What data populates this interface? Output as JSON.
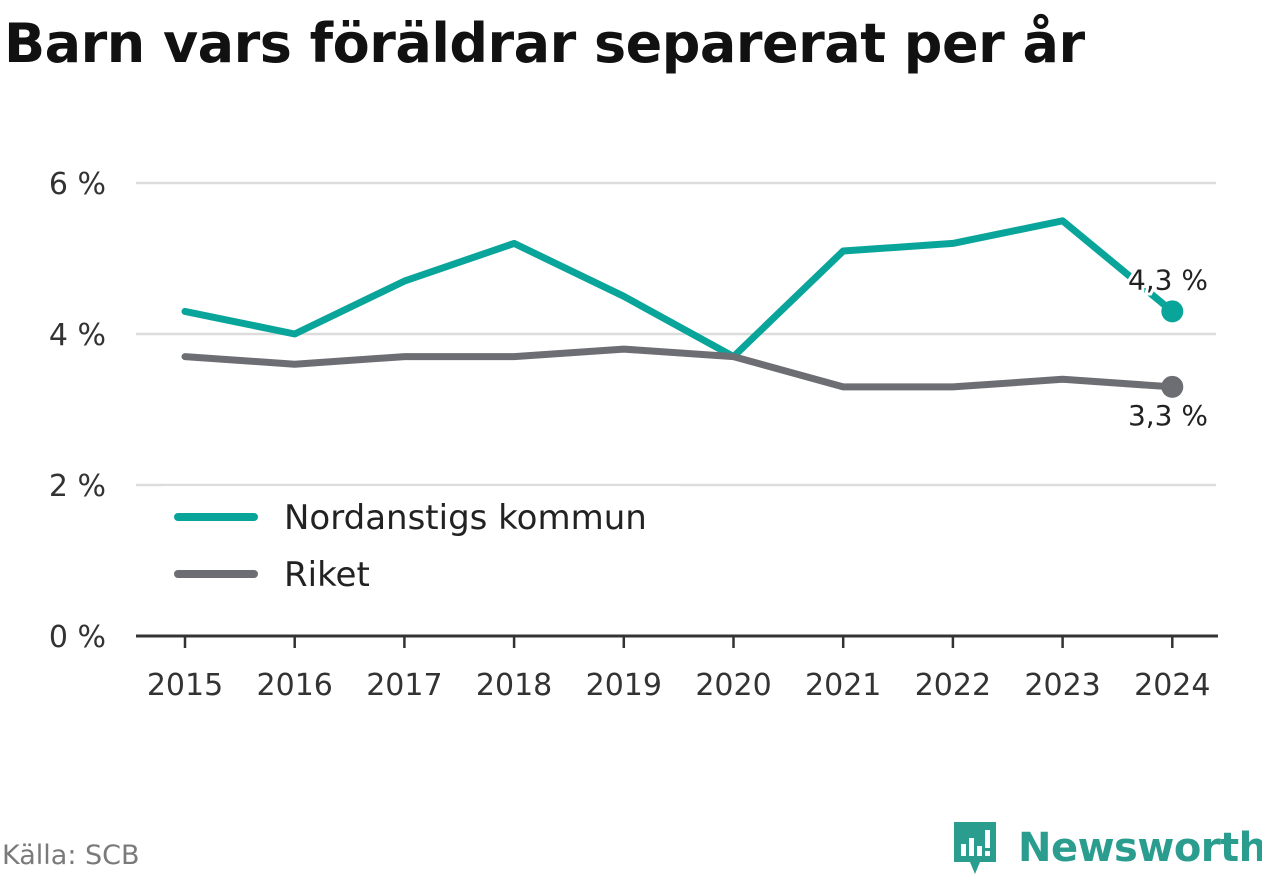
{
  "title": "Barn vars föräldrar separerat per år",
  "source": "Källa: SCB",
  "brand": "Newsworthy",
  "colors": {
    "nordanstig": "#0aa59a",
    "riket": "#6d6d74",
    "grid": "#dcdcdc",
    "axis": "#333333",
    "text": "#333333"
  },
  "chart_data": {
    "type": "line",
    "x": [
      "2015",
      "2016",
      "2017",
      "2018",
      "2019",
      "2020",
      "2021",
      "2022",
      "2023",
      "2024"
    ],
    "ylim": [
      0,
      6
    ],
    "yticks": [
      0,
      2,
      4,
      6
    ],
    "ytick_labels": [
      "0 %",
      "2 %",
      "4 %",
      "6 %"
    ],
    "grid": true,
    "legend_position": "bottom-left",
    "series": [
      {
        "name": "Nordanstigs kommun",
        "color": "#0aa59a",
        "values": [
          4.3,
          4.0,
          4.7,
          5.2,
          4.5,
          3.7,
          5.1,
          5.2,
          5.5,
          4.3
        ],
        "end_label": "4,3 %"
      },
      {
        "name": "Riket",
        "color": "#6d6d74",
        "values": [
          3.7,
          3.6,
          3.7,
          3.7,
          3.8,
          3.7,
          3.3,
          3.3,
          3.4,
          3.3
        ],
        "end_label": "3,3 %"
      }
    ]
  }
}
